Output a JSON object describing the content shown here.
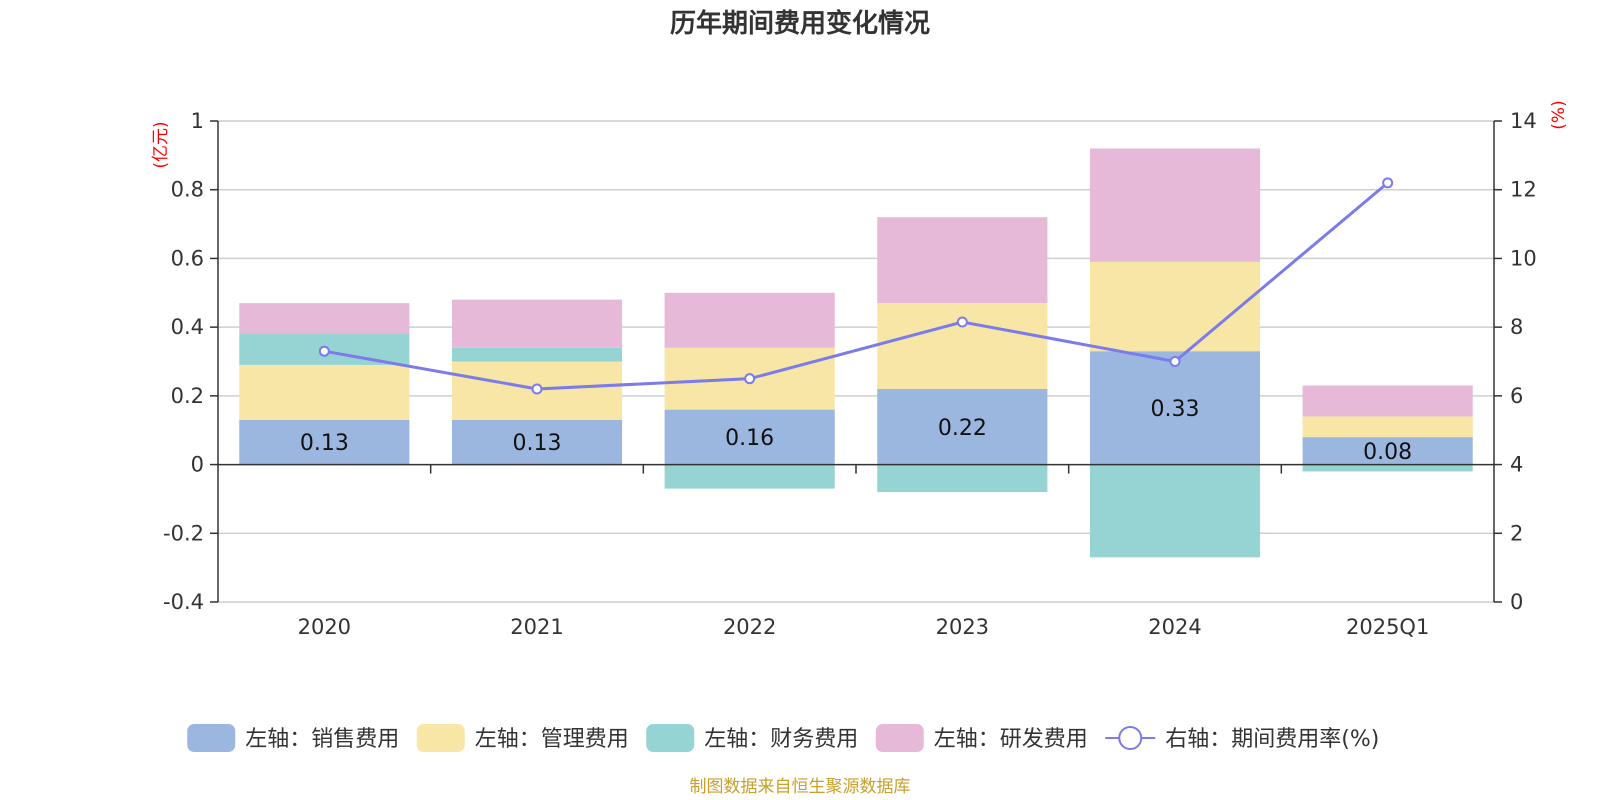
{
  "title": "历年期间费用变化情况",
  "left_axis_unit": "(亿元)",
  "right_axis_unit": "(%)",
  "source": "制图数据来自恒生聚源数据库",
  "colors": {
    "sales": "#9bb7e0",
    "admin": "#f7e6a6",
    "finance": "#96d3d3",
    "rnd": "#e7b9d9",
    "rate": "#7b7bea"
  },
  "chart_data": {
    "type": "bar",
    "categories": [
      "2020",
      "2021",
      "2022",
      "2023",
      "2024",
      "2025Q1"
    ],
    "left_axis": {
      "ylim": [
        -0.4,
        1
      ],
      "ticks": [
        -0.4,
        -0.2,
        0,
        0.2,
        0.4,
        0.6,
        0.8,
        1
      ]
    },
    "right_axis": {
      "ylim": [
        0,
        14
      ],
      "ticks": [
        0,
        2,
        4,
        6,
        8,
        10,
        12,
        14
      ]
    },
    "series": [
      {
        "key": "sales",
        "name": "左轴：销售费用",
        "axis": "left",
        "values": [
          0.13,
          0.13,
          0.16,
          0.22,
          0.33,
          0.08
        ],
        "labels": [
          "0.13",
          "0.13",
          "0.16",
          "0.22",
          "0.33",
          "0.08"
        ]
      },
      {
        "key": "admin",
        "name": "左轴：管理费用",
        "axis": "left",
        "values": [
          0.16,
          0.17,
          0.18,
          0.25,
          0.26,
          0.06
        ]
      },
      {
        "key": "finance",
        "name": "左轴：财务费用",
        "axis": "left",
        "values": [
          0.09,
          0.04,
          -0.07,
          -0.08,
          -0.27,
          -0.02
        ]
      },
      {
        "key": "rnd",
        "name": "左轴：研发费用",
        "axis": "left",
        "values": [
          0.09,
          0.14,
          0.16,
          0.25,
          0.33,
          0.09
        ]
      },
      {
        "key": "rate",
        "name": "右轴：期间费用率(%)",
        "axis": "right",
        "type": "line",
        "values": [
          7.3,
          6.2,
          6.5,
          8.15,
          7.0,
          12.2
        ]
      }
    ],
    "grid": true,
    "legend_position": "bottom"
  }
}
